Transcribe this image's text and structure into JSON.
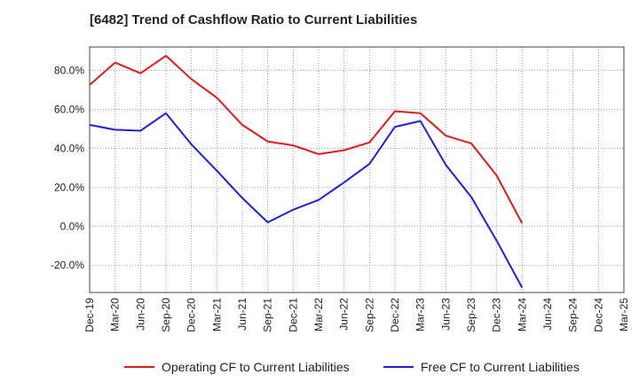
{
  "chart_data": {
    "type": "line",
    "title": "[6482]  Trend of Cashflow Ratio to Current Liabilities",
    "xlabel": "",
    "ylabel": "",
    "categories": [
      "Dec-19",
      "Mar-20",
      "Jun-20",
      "Sep-20",
      "Dec-20",
      "Mar-21",
      "Jun-21",
      "Sep-21",
      "Dec-21",
      "Mar-22",
      "Jun-22",
      "Sep-22",
      "Dec-22",
      "Mar-23",
      "Jun-23",
      "Sep-23",
      "Dec-23",
      "Mar-24",
      "Jun-24",
      "Sep-24",
      "Dec-24",
      "Mar-25"
    ],
    "ylim": [
      -34,
      92
    ],
    "yticks": [
      -20,
      0,
      20,
      40,
      60,
      80
    ],
    "ytick_labels": [
      "-20.0%",
      "0.0%",
      "20.0%",
      "40.0%",
      "60.0%",
      "80.0%"
    ],
    "grid": true,
    "legend_position": "bottom",
    "series": [
      {
        "name": "Operating CF to Current Liabilities",
        "color": "#e31a1c",
        "values": [
          72.5,
          84.0,
          78.5,
          87.5,
          75.5,
          66.0,
          52.0,
          43.5,
          41.5,
          37.0,
          39.0,
          43.0,
          59.0,
          58.0,
          46.5,
          42.5,
          26.0,
          1.5,
          null,
          null,
          null,
          null
        ]
      },
      {
        "name": "Free CF to Current Liabilities",
        "color": "#1f1fe0",
        "values": [
          52.0,
          49.5,
          49.0,
          58.0,
          42.0,
          28.5,
          14.5,
          2.0,
          8.5,
          13.5,
          22.5,
          32.0,
          51.0,
          54.0,
          31.5,
          15.0,
          -7.5,
          -31.5,
          null,
          null,
          null,
          null
        ]
      }
    ]
  }
}
